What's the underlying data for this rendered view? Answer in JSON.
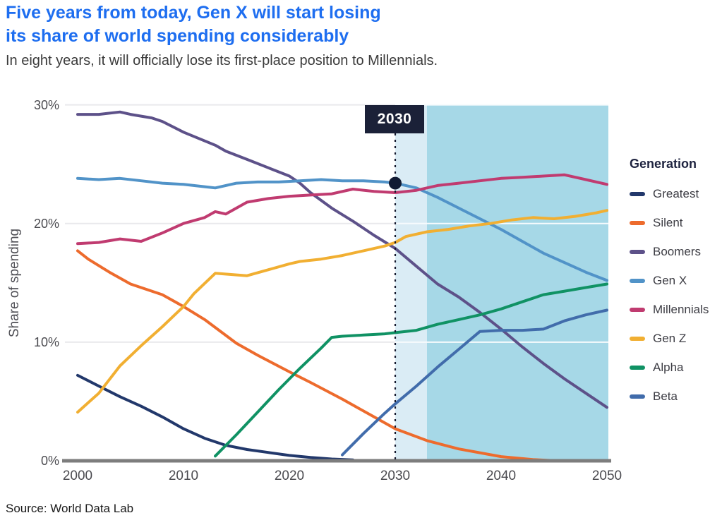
{
  "header": {
    "title_line1": "Five years from today, Gen X will start losing",
    "title_line2": "its share of world spending considerably",
    "subtitle": "In eight years, it will officially lose its first-place position to Millennials."
  },
  "source": "Source: World Data Lab",
  "colors": {
    "title": "#1e6ef0",
    "band_light": "#daecf5",
    "band_dark": "#a6d8e7",
    "annotation_box": "#1b2138",
    "dashed_line": "#15192e",
    "dot": "#111b33",
    "gridline_outside": "#e9e9ec",
    "gridline_inside": "#f7fbfd",
    "axis_line": "#7d7d7d"
  },
  "chart_data": {
    "type": "line",
    "title": "Five years from today, Gen X will start losing its share of world spending considerably",
    "ylabel": "Share of spending",
    "xlabel": "",
    "xlim": [
      2000,
      2050
    ],
    "ylim": [
      0,
      30
    ],
    "grid": true,
    "legend_title": "Generation",
    "legend_position": "right",
    "xticks": [
      2000,
      2010,
      2020,
      2030,
      2040,
      2050
    ],
    "yticks": [
      {
        "value": 0,
        "label": "0%"
      },
      {
        "value": 10,
        "label": "10%"
      },
      {
        "value": 20,
        "label": "20%"
      },
      {
        "value": 30,
        "label": "30%"
      }
    ],
    "shaded_regions": [
      {
        "from": 2030,
        "to": 2033,
        "color": "#daecf5"
      },
      {
        "from": 2033,
        "to": 2050,
        "color": "#a6d8e7"
      }
    ],
    "annotation": {
      "label": "2030",
      "year": 2030,
      "marker": {
        "series": "Gen X",
        "year": 2030,
        "value": 23.4
      }
    },
    "series": [
      {
        "name": "Greatest",
        "color": "#22386b",
        "points": [
          [
            2000,
            7.2
          ],
          [
            2002,
            6.3
          ],
          [
            2004,
            5.4
          ],
          [
            2006,
            4.6
          ],
          [
            2008,
            3.7
          ],
          [
            2010,
            2.7
          ],
          [
            2012,
            1.9
          ],
          [
            2014,
            1.3
          ],
          [
            2016,
            0.95
          ],
          [
            2018,
            0.7
          ],
          [
            2020,
            0.45
          ],
          [
            2022,
            0.28
          ],
          [
            2024,
            0.15
          ],
          [
            2026,
            0.07
          ]
        ]
      },
      {
        "name": "Silent",
        "color": "#ed6b2d",
        "points": [
          [
            2000,
            17.7
          ],
          [
            2001,
            17.0
          ],
          [
            2003,
            15.9
          ],
          [
            2005,
            14.9
          ],
          [
            2008,
            14.0
          ],
          [
            2010,
            13.0
          ],
          [
            2012,
            11.9
          ],
          [
            2015,
            9.9
          ],
          [
            2017,
            8.9
          ],
          [
            2020,
            7.5
          ],
          [
            2022,
            6.6
          ],
          [
            2025,
            5.2
          ],
          [
            2028,
            3.7
          ],
          [
            2030,
            2.7
          ],
          [
            2033,
            1.7
          ],
          [
            2036,
            1.0
          ],
          [
            2040,
            0.35
          ],
          [
            2043,
            0.1
          ],
          [
            2045,
            0.02
          ]
        ]
      },
      {
        "name": "Boomers",
        "color": "#5d5189",
        "points": [
          [
            2000,
            29.2
          ],
          [
            2002,
            29.2
          ],
          [
            2004,
            29.4
          ],
          [
            2005,
            29.2
          ],
          [
            2007,
            28.9
          ],
          [
            2008,
            28.6
          ],
          [
            2010,
            27.7
          ],
          [
            2013,
            26.6
          ],
          [
            2014,
            26.1
          ],
          [
            2016,
            25.4
          ],
          [
            2018,
            24.7
          ],
          [
            2020,
            24.0
          ],
          [
            2021,
            23.4
          ],
          [
            2022,
            22.6
          ],
          [
            2024,
            21.3
          ],
          [
            2026,
            20.2
          ],
          [
            2028,
            19.0
          ],
          [
            2030,
            17.9
          ],
          [
            2032,
            16.4
          ],
          [
            2034,
            14.9
          ],
          [
            2036,
            13.8
          ],
          [
            2038,
            12.5
          ],
          [
            2040,
            11.1
          ],
          [
            2042,
            9.6
          ],
          [
            2044,
            8.2
          ],
          [
            2046,
            6.9
          ],
          [
            2048,
            5.7
          ],
          [
            2050,
            4.5
          ]
        ]
      },
      {
        "name": "Gen X",
        "color": "#5193c8",
        "points": [
          [
            2000,
            23.8
          ],
          [
            2002,
            23.7
          ],
          [
            2004,
            23.8
          ],
          [
            2006,
            23.6
          ],
          [
            2008,
            23.4
          ],
          [
            2010,
            23.3
          ],
          [
            2012,
            23.1
          ],
          [
            2013,
            23.0
          ],
          [
            2015,
            23.4
          ],
          [
            2017,
            23.5
          ],
          [
            2019,
            23.5
          ],
          [
            2021,
            23.6
          ],
          [
            2023,
            23.7
          ],
          [
            2025,
            23.6
          ],
          [
            2027,
            23.6
          ],
          [
            2029,
            23.5
          ],
          [
            2030,
            23.4
          ],
          [
            2032,
            23.0
          ],
          [
            2034,
            22.2
          ],
          [
            2036,
            21.3
          ],
          [
            2038,
            20.4
          ],
          [
            2040,
            19.5
          ],
          [
            2042,
            18.5
          ],
          [
            2044,
            17.5
          ],
          [
            2046,
            16.7
          ],
          [
            2048,
            15.9
          ],
          [
            2050,
            15.2
          ]
        ]
      },
      {
        "name": "Millennials",
        "color": "#c03b70",
        "points": [
          [
            2000,
            18.3
          ],
          [
            2002,
            18.4
          ],
          [
            2004,
            18.7
          ],
          [
            2006,
            18.5
          ],
          [
            2008,
            19.2
          ],
          [
            2010,
            20.0
          ],
          [
            2012,
            20.5
          ],
          [
            2013,
            21.0
          ],
          [
            2014,
            20.8
          ],
          [
            2016,
            21.8
          ],
          [
            2018,
            22.1
          ],
          [
            2020,
            22.3
          ],
          [
            2022,
            22.4
          ],
          [
            2024,
            22.5
          ],
          [
            2026,
            22.9
          ],
          [
            2028,
            22.7
          ],
          [
            2030,
            22.6
          ],
          [
            2032,
            22.8
          ],
          [
            2034,
            23.2
          ],
          [
            2036,
            23.4
          ],
          [
            2038,
            23.6
          ],
          [
            2040,
            23.8
          ],
          [
            2042,
            23.9
          ],
          [
            2044,
            24.0
          ],
          [
            2046,
            24.1
          ],
          [
            2048,
            23.7
          ],
          [
            2050,
            23.3
          ]
        ]
      },
      {
        "name": "Gen Z",
        "color": "#f1af32",
        "points": [
          [
            2000,
            4.1
          ],
          [
            2002,
            5.7
          ],
          [
            2004,
            8.0
          ],
          [
            2006,
            9.7
          ],
          [
            2008,
            11.3
          ],
          [
            2010,
            13.0
          ],
          [
            2011,
            14.1
          ],
          [
            2013,
            15.8
          ],
          [
            2016,
            15.6
          ],
          [
            2018,
            16.1
          ],
          [
            2020,
            16.6
          ],
          [
            2021,
            16.8
          ],
          [
            2023,
            17.0
          ],
          [
            2025,
            17.3
          ],
          [
            2027,
            17.7
          ],
          [
            2029,
            18.1
          ],
          [
            2030,
            18.4
          ],
          [
            2031,
            18.9
          ],
          [
            2033,
            19.3
          ],
          [
            2035,
            19.5
          ],
          [
            2037,
            19.8
          ],
          [
            2039,
            20.0
          ],
          [
            2041,
            20.3
          ],
          [
            2043,
            20.5
          ],
          [
            2045,
            20.4
          ],
          [
            2047,
            20.6
          ],
          [
            2049,
            20.9
          ],
          [
            2050,
            21.1
          ]
        ]
      },
      {
        "name": "Alpha",
        "color": "#109264",
        "points": [
          [
            2013,
            0.4
          ],
          [
            2015,
            2.2
          ],
          [
            2017,
            4.1
          ],
          [
            2019,
            6.0
          ],
          [
            2021,
            7.8
          ],
          [
            2023,
            9.5
          ],
          [
            2024,
            10.4
          ],
          [
            2025,
            10.5
          ],
          [
            2027,
            10.6
          ],
          [
            2029,
            10.7
          ],
          [
            2030,
            10.8
          ],
          [
            2032,
            11.0
          ],
          [
            2034,
            11.5
          ],
          [
            2036,
            11.9
          ],
          [
            2038,
            12.3
          ],
          [
            2040,
            12.8
          ],
          [
            2042,
            13.4
          ],
          [
            2044,
            14.0
          ],
          [
            2046,
            14.3
          ],
          [
            2048,
            14.6
          ],
          [
            2050,
            14.9
          ]
        ]
      },
      {
        "name": "Beta",
        "color": "#416cab",
        "points": [
          [
            2025,
            0.5
          ],
          [
            2027,
            2.3
          ],
          [
            2029,
            4.0
          ],
          [
            2030,
            4.8
          ],
          [
            2032,
            6.3
          ],
          [
            2034,
            7.9
          ],
          [
            2036,
            9.4
          ],
          [
            2038,
            10.9
          ],
          [
            2040,
            11.0
          ],
          [
            2042,
            11.0
          ],
          [
            2044,
            11.1
          ],
          [
            2046,
            11.8
          ],
          [
            2048,
            12.3
          ],
          [
            2050,
            12.7
          ]
        ]
      }
    ]
  }
}
